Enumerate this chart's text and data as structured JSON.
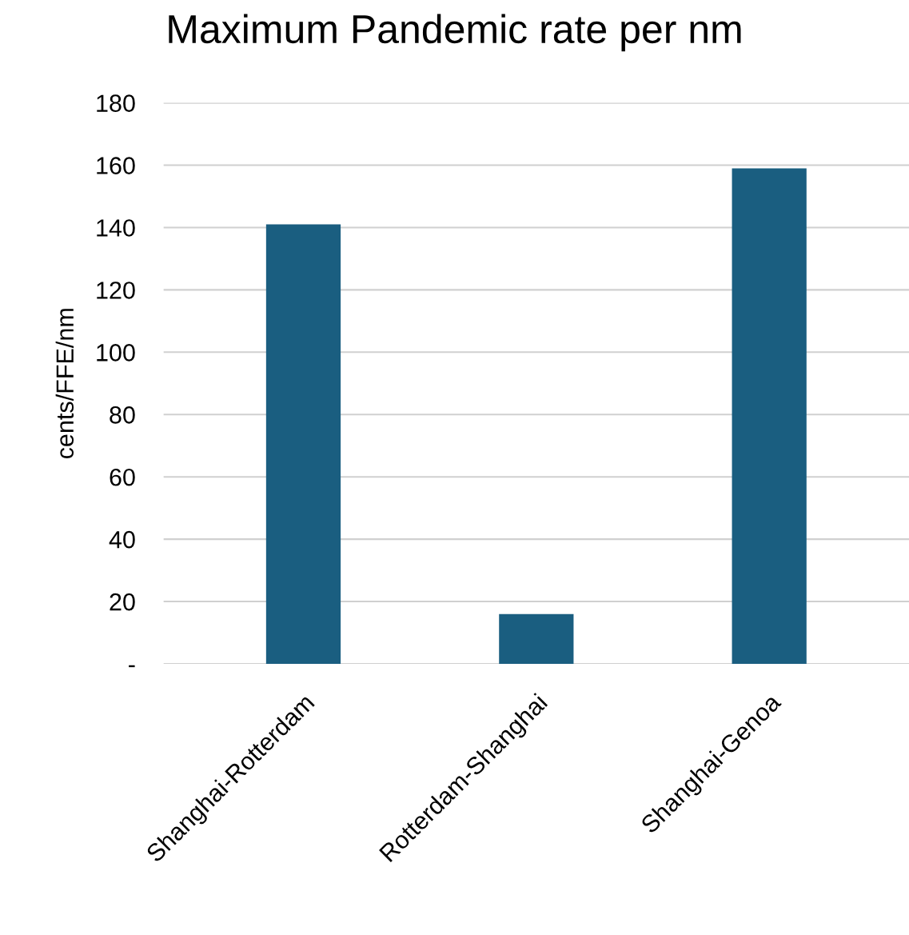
{
  "chart_data": {
    "type": "bar",
    "title": "Maximum Pandemic rate per nm",
    "ylabel": "cents/FFE/nm",
    "categories": [
      "Shanghai-Rotterdam",
      "Rotterdam-Shanghai",
      "Shanghai-Genoa"
    ],
    "values": [
      141,
      16,
      159
    ],
    "color": "#1a5e80",
    "ylim": [
      0,
      180
    ],
    "yticks": [
      {
        "value": 0,
        "label": "-"
      },
      20,
      40,
      60,
      80,
      100,
      120,
      140,
      160,
      180
    ],
    "grid": "y"
  }
}
